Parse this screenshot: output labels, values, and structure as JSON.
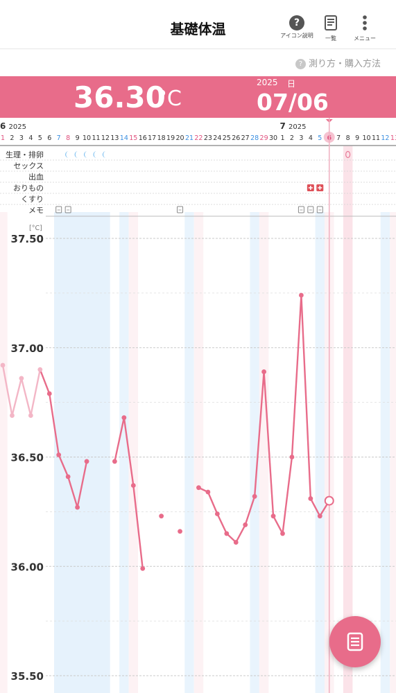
{
  "header": {
    "title": "基礎体温",
    "icon_help_label": "アイコン説明",
    "list_label": "一覧",
    "menu_label": "メニュー"
  },
  "measure_link": "測り方・購入方法",
  "banner": {
    "temperature": "36.30",
    "unit": "°C",
    "year": "2025",
    "day_label": "日",
    "date": "07/06"
  },
  "months": [
    {
      "month": "6",
      "year": "2025"
    },
    {
      "month": "7",
      "year": "2025"
    }
  ],
  "days": [
    1,
    2,
    3,
    4,
    5,
    6,
    7,
    8,
    9,
    10,
    11,
    12,
    13,
    14,
    15,
    16,
    17,
    18,
    19,
    20,
    21,
    22,
    23,
    24,
    25,
    26,
    27,
    28,
    29,
    30,
    1,
    2,
    3,
    4,
    5,
    6,
    7,
    8,
    9,
    10,
    11,
    12,
    13
  ],
  "rows": [
    "生理・排卵",
    "セックス",
    "出血",
    "おりもの",
    "くすり",
    "メモ"
  ],
  "y_unit": "[°C]",
  "colors": {
    "accent": "#e86c8a",
    "saturday": "#3b8fe0",
    "sunday": "#e0507e",
    "selected": "#f6c3d1"
  },
  "chart_data": {
    "type": "line",
    "ylabel": "[°C]",
    "ylim": [
      35.5,
      37.5
    ],
    "yticks": [
      "37.50",
      "37.00",
      "36.50",
      "36.00",
      "35.50"
    ],
    "selected_day_index": 35,
    "menstruation_day_indexes": [
      7,
      8,
      9,
      10,
      11
    ],
    "memo_day_indexes": [
      6,
      7,
      19,
      32,
      33,
      34
    ],
    "discharge_day_indexes": [
      33,
      34
    ],
    "series": [
      {
        "values": [
          36.92,
          36.69,
          36.86,
          36.69,
          36.9,
          36.79,
          36.51,
          36.41,
          36.27,
          36.48,
          null,
          null,
          36.48,
          36.68,
          36.37,
          35.99,
          null,
          36.23,
          null,
          36.16,
          null,
          36.36,
          36.34,
          36.24,
          36.15,
          36.11,
          36.19,
          36.32,
          36.89,
          36.23,
          36.15,
          36.5,
          37.24,
          36.31,
          36.23,
          36.3,
          null,
          null,
          null,
          null,
          null,
          null,
          null
        ]
      }
    ]
  }
}
